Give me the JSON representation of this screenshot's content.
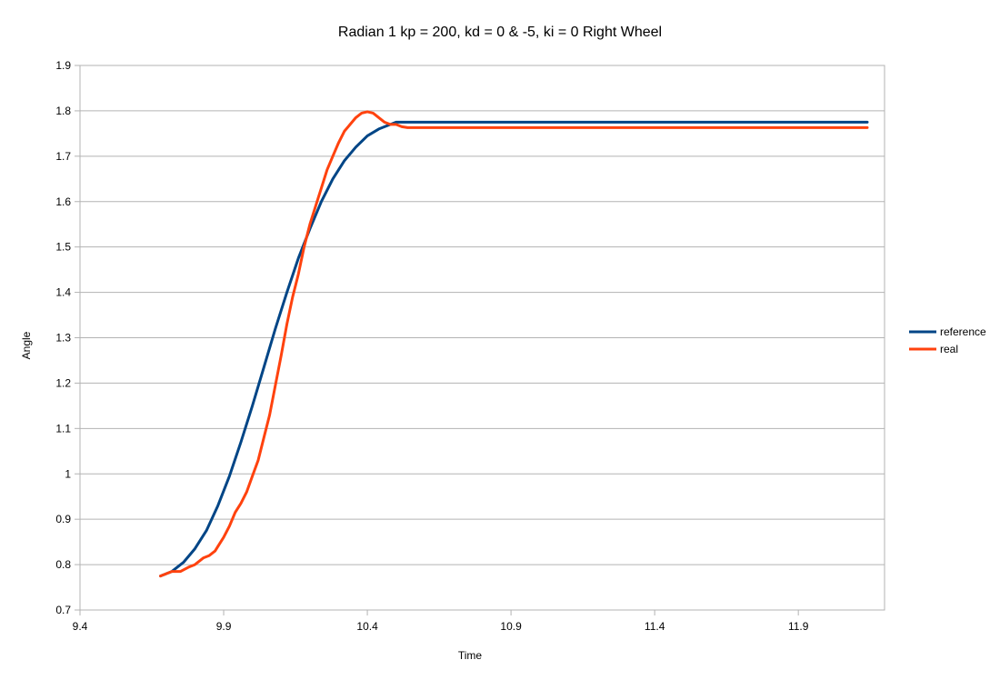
{
  "chart_data": {
    "type": "line",
    "title": "Radian 1 kp = 200, kd = 0 & -5, ki = 0 Right Wheel",
    "xlabel": "Time",
    "ylabel": "Angle",
    "xlim": [
      9.4,
      12.2
    ],
    "ylim": [
      0.7,
      1.9
    ],
    "x_ticks": [
      9.4,
      9.9,
      10.4,
      10.9,
      11.4,
      11.9
    ],
    "x_tick_labels": [
      "9.4",
      "9.9",
      "10.4",
      "10.9",
      "11.4",
      "11.9"
    ],
    "y_ticks": [
      0.7,
      0.8,
      0.9,
      1.0,
      1.1,
      1.2,
      1.3,
      1.4,
      1.5,
      1.6,
      1.7,
      1.8,
      1.9
    ],
    "y_tick_labels": [
      "0.7",
      "0.8",
      "0.9",
      "1",
      "1.1",
      "1.2",
      "1.3",
      "1.4",
      "1.5",
      "1.6",
      "1.7",
      "1.8",
      "1.9"
    ],
    "grid": true,
    "legend": "right",
    "series": [
      {
        "name": "reference",
        "color": "#004586",
        "x": [
          9.68,
          9.72,
          9.76,
          9.8,
          9.84,
          9.88,
          9.92,
          9.96,
          10.0,
          10.04,
          10.08,
          10.12,
          10.16,
          10.2,
          10.24,
          10.28,
          10.32,
          10.36,
          10.4,
          10.44,
          10.48,
          10.5,
          10.52,
          10.6,
          10.8,
          11.0,
          11.2,
          11.4,
          11.6,
          11.8,
          12.0,
          12.14
        ],
        "y": [
          0.775,
          0.785,
          0.805,
          0.835,
          0.875,
          0.93,
          0.995,
          1.07,
          1.15,
          1.235,
          1.32,
          1.4,
          1.475,
          1.54,
          1.6,
          1.65,
          1.69,
          1.72,
          1.745,
          1.76,
          1.77,
          1.775,
          1.775,
          1.775,
          1.775,
          1.775,
          1.775,
          1.775,
          1.775,
          1.775,
          1.775,
          1.775
        ]
      },
      {
        "name": "real",
        "color": "#ff420e",
        "x": [
          9.68,
          9.7,
          9.72,
          9.75,
          9.78,
          9.8,
          9.83,
          9.85,
          9.87,
          9.88,
          9.9,
          9.92,
          9.94,
          9.96,
          9.98,
          10.0,
          10.02,
          10.04,
          10.06,
          10.08,
          10.1,
          10.12,
          10.14,
          10.16,
          10.18,
          10.2,
          10.22,
          10.24,
          10.26,
          10.28,
          10.3,
          10.32,
          10.34,
          10.36,
          10.38,
          10.4,
          10.42,
          10.44,
          10.46,
          10.48,
          10.5,
          10.52,
          10.54,
          10.56,
          10.6,
          10.8,
          11.0,
          11.2,
          11.4,
          11.6,
          11.8,
          12.0,
          12.14
        ],
        "y": [
          0.775,
          0.78,
          0.785,
          0.785,
          0.795,
          0.8,
          0.815,
          0.82,
          0.83,
          0.84,
          0.86,
          0.885,
          0.915,
          0.935,
          0.96,
          0.995,
          1.03,
          1.08,
          1.13,
          1.195,
          1.26,
          1.33,
          1.39,
          1.44,
          1.5,
          1.55,
          1.59,
          1.63,
          1.67,
          1.7,
          1.73,
          1.755,
          1.77,
          1.785,
          1.795,
          1.798,
          1.795,
          1.785,
          1.775,
          1.77,
          1.77,
          1.765,
          1.763,
          1.763,
          1.763,
          1.763,
          1.763,
          1.763,
          1.763,
          1.763,
          1.763,
          1.763,
          1.763
        ]
      }
    ]
  }
}
